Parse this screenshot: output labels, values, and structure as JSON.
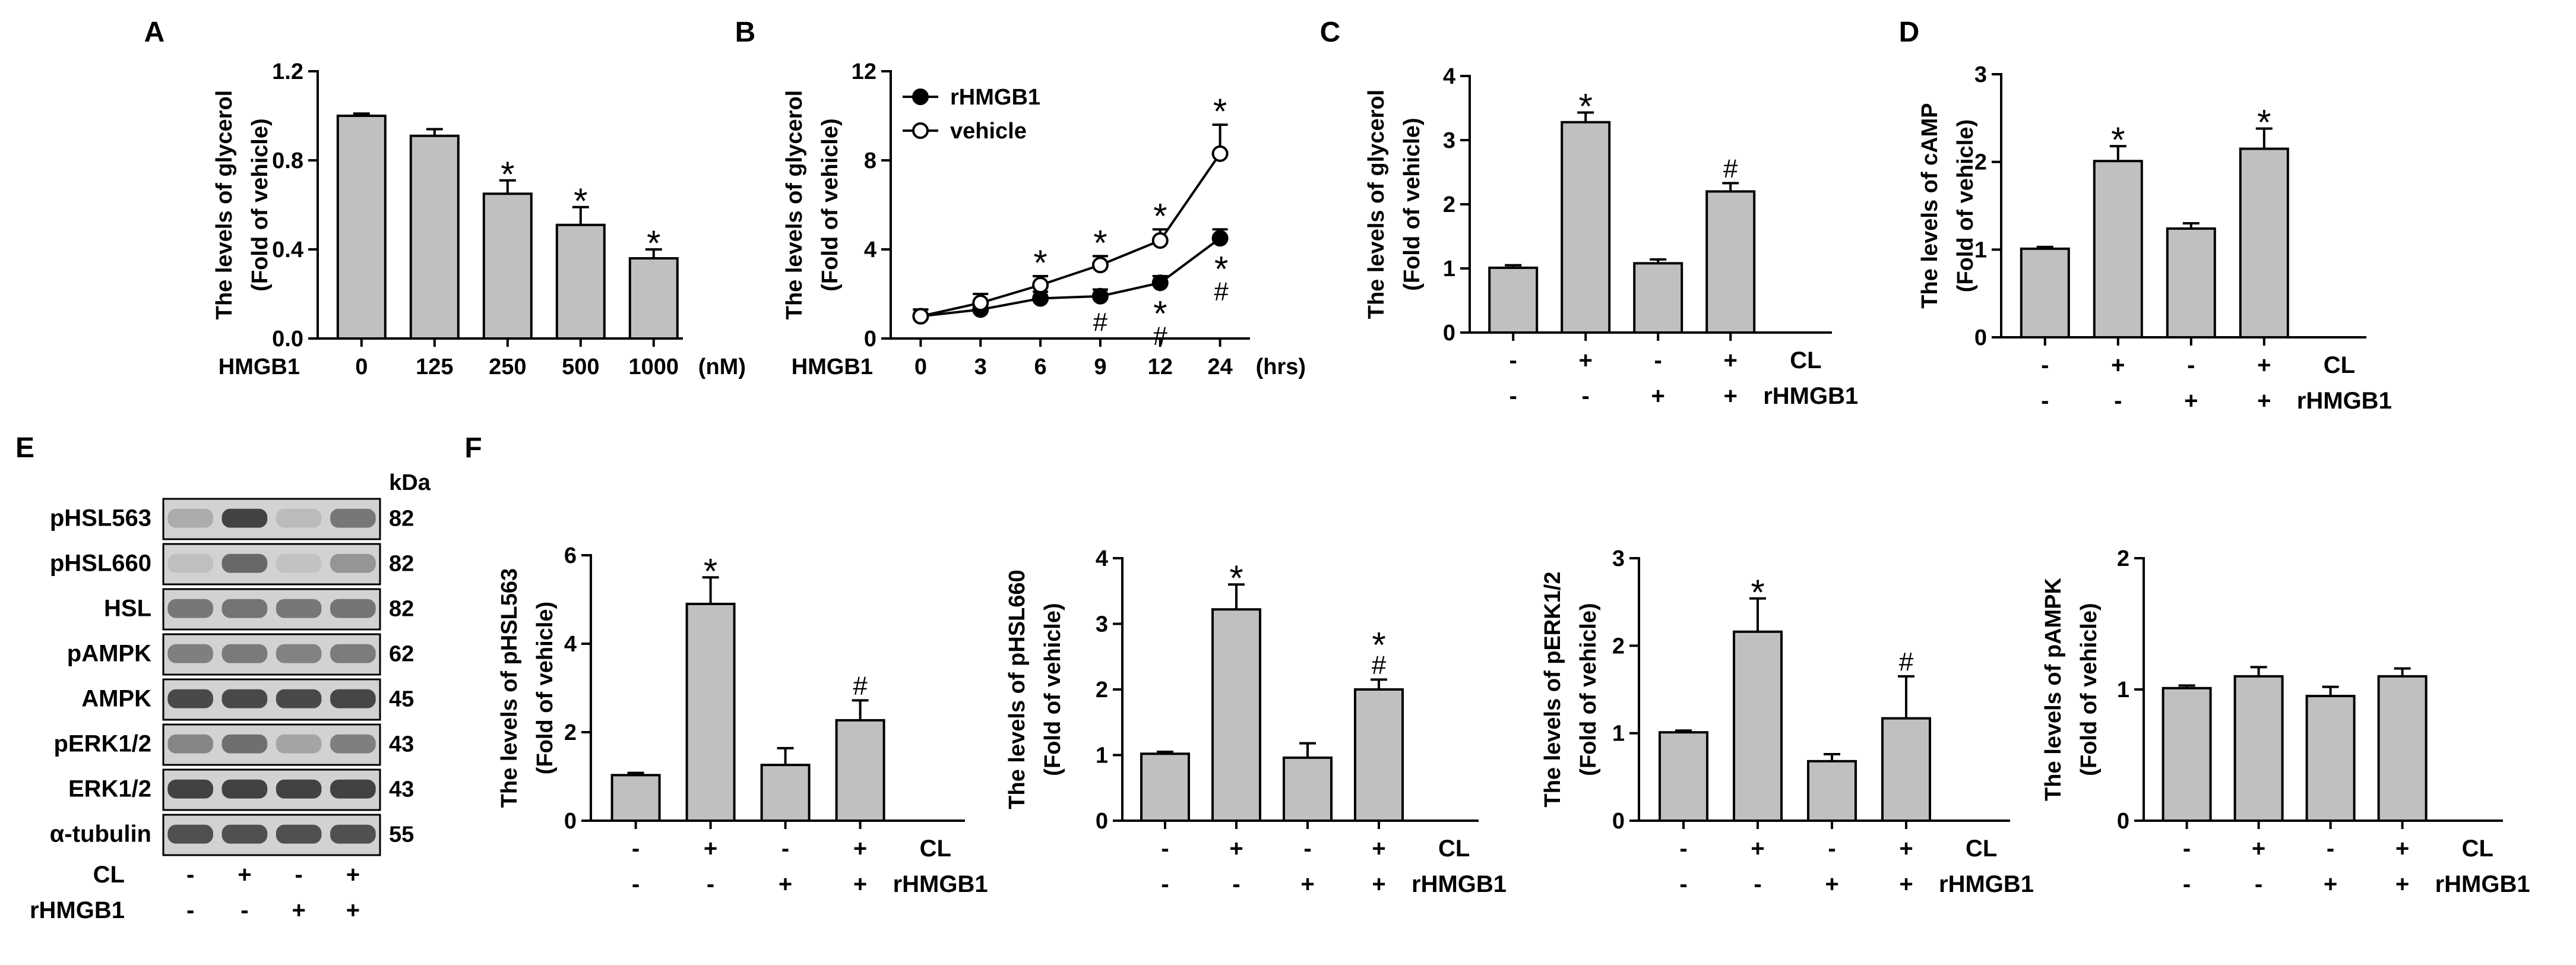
{
  "colors": {
    "bar": "#c0c0c0",
    "stroke": "#000000",
    "blot_bg": "#d2d2d2",
    "blot_band": "#3a3a3a"
  },
  "sig": {
    "star": "*",
    "hash": "#"
  },
  "chart_data": [
    {
      "id": "A",
      "type": "bar",
      "panel_label": "A",
      "ylabel_line1": "The levels of glycerol",
      "ylabel_line2": "(Fold of vehicle)",
      "ylim": [
        0,
        1.2
      ],
      "yticks": [
        "0.0",
        "0.4",
        "0.8",
        "1.2"
      ],
      "ytick_values": [
        0,
        0.4,
        0.8,
        1.2
      ],
      "xlabel_left": "HMGB1",
      "xlabel_right": "(nM)",
      "categories": [
        "0",
        "125",
        "250",
        "500",
        "1000"
      ],
      "values": [
        1.0,
        0.91,
        0.65,
        0.51,
        0.36
      ],
      "errors": [
        0.01,
        0.03,
        0.06,
        0.08,
        0.04
      ],
      "marks": [
        [],
        [],
        [
          "*"
        ],
        [
          "*"
        ],
        [
          "*"
        ]
      ]
    },
    {
      "id": "B",
      "type": "line",
      "panel_label": "B",
      "ylabel_line1": "The levels of glycerol",
      "ylabel_line2": "(Fold of vehicle)",
      "ylim": [
        0,
        12
      ],
      "yticks": [
        "0",
        "4",
        "8",
        "12"
      ],
      "ytick_values": [
        0,
        4,
        8,
        12
      ],
      "xlabel_left": "HMGB1",
      "xlabel_right": "(hrs)",
      "categories": [
        "0",
        "3",
        "6",
        "9",
        "12",
        "24"
      ],
      "legend": [
        "rHMGB1",
        "vehicle"
      ],
      "series": [
        {
          "name": "rHMGB1",
          "filled": true,
          "values": [
            1.0,
            1.3,
            1.8,
            1.9,
            2.5,
            4.5
          ],
          "errors": [
            0.3,
            0.3,
            0.3,
            0.3,
            0.3,
            0.4
          ]
        },
        {
          "name": "vehicle",
          "filled": false,
          "values": [
            1.0,
            1.6,
            2.4,
            3.3,
            4.4,
            8.3
          ],
          "errors": [
            0.3,
            0.4,
            0.4,
            0.4,
            0.5,
            1.3
          ]
        }
      ],
      "top_marks": [
        [],
        [],
        [
          "*"
        ],
        [
          "*"
        ],
        [
          "*"
        ],
        [
          "*"
        ]
      ],
      "bottom_marks": [
        [],
        [],
        [],
        [
          "#"
        ],
        [
          "*",
          "#"
        ],
        [
          "*",
          "#"
        ]
      ]
    },
    {
      "id": "C",
      "type": "bar",
      "panel_label": "C",
      "ylabel_line1": "The levels of glycerol",
      "ylabel_line2": "(Fold of vehicle)",
      "ylim": [
        0,
        4
      ],
      "yticks": [
        "0",
        "1",
        "2",
        "3",
        "4"
      ],
      "ytick_values": [
        0,
        1,
        2,
        3,
        4
      ],
      "values": [
        1.01,
        3.28,
        1.08,
        2.2
      ],
      "errors": [
        0.04,
        0.15,
        0.06,
        0.13
      ],
      "marks": [
        [],
        [
          "*"
        ],
        [],
        [
          "#"
        ]
      ],
      "row1": [
        "-",
        "+",
        "-",
        "+"
      ],
      "row1_label": "CL",
      "row2": [
        "-",
        "-",
        "+",
        "+"
      ],
      "row2_label": "rHMGB1"
    },
    {
      "id": "D",
      "type": "bar",
      "panel_label": "D",
      "ylabel_line1": "The levels of cAMP",
      "ylabel_line2": "(Fold of vehicle)",
      "ylim": [
        0,
        3
      ],
      "yticks": [
        "0",
        "1",
        "2",
        "3"
      ],
      "ytick_values": [
        0,
        1,
        2,
        3
      ],
      "values": [
        1.01,
        2.01,
        1.24,
        2.15
      ],
      "errors": [
        0.02,
        0.17,
        0.06,
        0.23
      ],
      "marks": [
        [],
        [
          "*"
        ],
        [],
        [
          "*"
        ]
      ],
      "row1": [
        "-",
        "+",
        "-",
        "+"
      ],
      "row1_label": "CL",
      "row2": [
        "-",
        "-",
        "+",
        "+"
      ],
      "row2_label": "rHMGB1"
    },
    {
      "id": "F1",
      "type": "bar",
      "panel_label": "F",
      "ylabel_line1": "The levels of pHSL563",
      "ylabel_line2": "(Fold of vehicle)",
      "ylim": [
        0,
        6
      ],
      "yticks": [
        "0",
        "2",
        "4",
        "6"
      ],
      "ytick_values": [
        0,
        2,
        4,
        6
      ],
      "values": [
        1.03,
        4.9,
        1.26,
        2.27
      ],
      "errors": [
        0.05,
        0.6,
        0.38,
        0.45
      ],
      "marks": [
        [],
        [
          "*"
        ],
        [],
        [
          "#"
        ]
      ],
      "row1": [
        "-",
        "+",
        "-",
        "+"
      ],
      "row1_label": "CL",
      "row2": [
        "-",
        "-",
        "+",
        "+"
      ],
      "row2_label": "rHMGB1"
    },
    {
      "id": "F2",
      "type": "bar",
      "panel_label": "",
      "ylabel_line1": "The levels of pHSL660",
      "ylabel_line2": "(Fold of vehicle)",
      "ylim": [
        0,
        4
      ],
      "yticks": [
        "0",
        "1",
        "2",
        "3",
        "4"
      ],
      "ytick_values": [
        0,
        1,
        2,
        3,
        4
      ],
      "values": [
        1.02,
        3.22,
        0.96,
        2.0
      ],
      "errors": [
        0.03,
        0.38,
        0.22,
        0.15
      ],
      "marks": [
        [],
        [
          "*"
        ],
        [],
        [
          "#",
          "*"
        ]
      ],
      "row1": [
        "-",
        "+",
        "-",
        "+"
      ],
      "row1_label": "CL",
      "row2": [
        "-",
        "-",
        "+",
        "+"
      ],
      "row2_label": "rHMGB1"
    },
    {
      "id": "F3",
      "type": "bar",
      "panel_label": "",
      "ylabel_line1": "The levels of pERK1/2",
      "ylabel_line2": "(Fold of vehicle)",
      "ylim": [
        0,
        3
      ],
      "yticks": [
        "0",
        "1",
        "2",
        "3"
      ],
      "ytick_values": [
        0,
        1,
        2,
        3
      ],
      "values": [
        1.01,
        2.16,
        0.68,
        1.17
      ],
      "errors": [
        0.02,
        0.38,
        0.08,
        0.48
      ],
      "marks": [
        [],
        [
          "*"
        ],
        [],
        [
          "#"
        ]
      ],
      "row1": [
        "-",
        "+",
        "-",
        "+"
      ],
      "row1_label": "CL",
      "row2": [
        "-",
        "-",
        "+",
        "+"
      ],
      "row2_label": "rHMGB1"
    },
    {
      "id": "F4",
      "type": "bar",
      "panel_label": "",
      "ylabel_line1": "The levels of pAMPK",
      "ylabel_line2": "(Fold of vehicle)",
      "ylim": [
        0,
        2
      ],
      "yticks": [
        "0",
        "1",
        "2"
      ],
      "ytick_values": [
        0,
        1,
        2
      ],
      "values": [
        1.01,
        1.1,
        0.95,
        1.1
      ],
      "errors": [
        0.02,
        0.07,
        0.07,
        0.06
      ],
      "marks": [
        [],
        [],
        [],
        []
      ],
      "row1": [
        "-",
        "+",
        "-",
        "+"
      ],
      "row1_label": "CL",
      "row2": [
        "-",
        "-",
        "+",
        "+"
      ],
      "row2_label": "rHMGB1"
    }
  ],
  "blot": {
    "panel_label": "E",
    "unit_label": "kDa",
    "rows": [
      {
        "label": "pHSL563",
        "kda": "82",
        "intensity": [
          0.25,
          0.95,
          0.15,
          0.6
        ]
      },
      {
        "label": "pHSL660",
        "kda": "82",
        "intensity": [
          0.12,
          0.7,
          0.1,
          0.4
        ]
      },
      {
        "label": "HSL",
        "kda": "82",
        "intensity": [
          0.6,
          0.62,
          0.6,
          0.62
        ]
      },
      {
        "label": "pAMPK",
        "kda": "62",
        "intensity": [
          0.55,
          0.58,
          0.52,
          0.57
        ]
      },
      {
        "label": "AMPK",
        "kda": "45",
        "intensity": [
          0.9,
          0.9,
          0.9,
          0.92
        ]
      },
      {
        "label": "pERK1/2",
        "kda": "43",
        "intensity": [
          0.5,
          0.65,
          0.3,
          0.55
        ]
      },
      {
        "label": "ERK1/2",
        "kda": "43",
        "intensity": [
          0.95,
          0.95,
          0.95,
          0.95
        ]
      },
      {
        "label": "α-tubulin",
        "kda": "55",
        "intensity": [
          0.85,
          0.85,
          0.85,
          0.85
        ]
      }
    ],
    "row1_label": "CL",
    "row1": [
      "-",
      "+",
      "-",
      "+"
    ],
    "row2_label": "rHMGB1",
    "row2": [
      "-",
      "-",
      "+",
      "+"
    ]
  }
}
